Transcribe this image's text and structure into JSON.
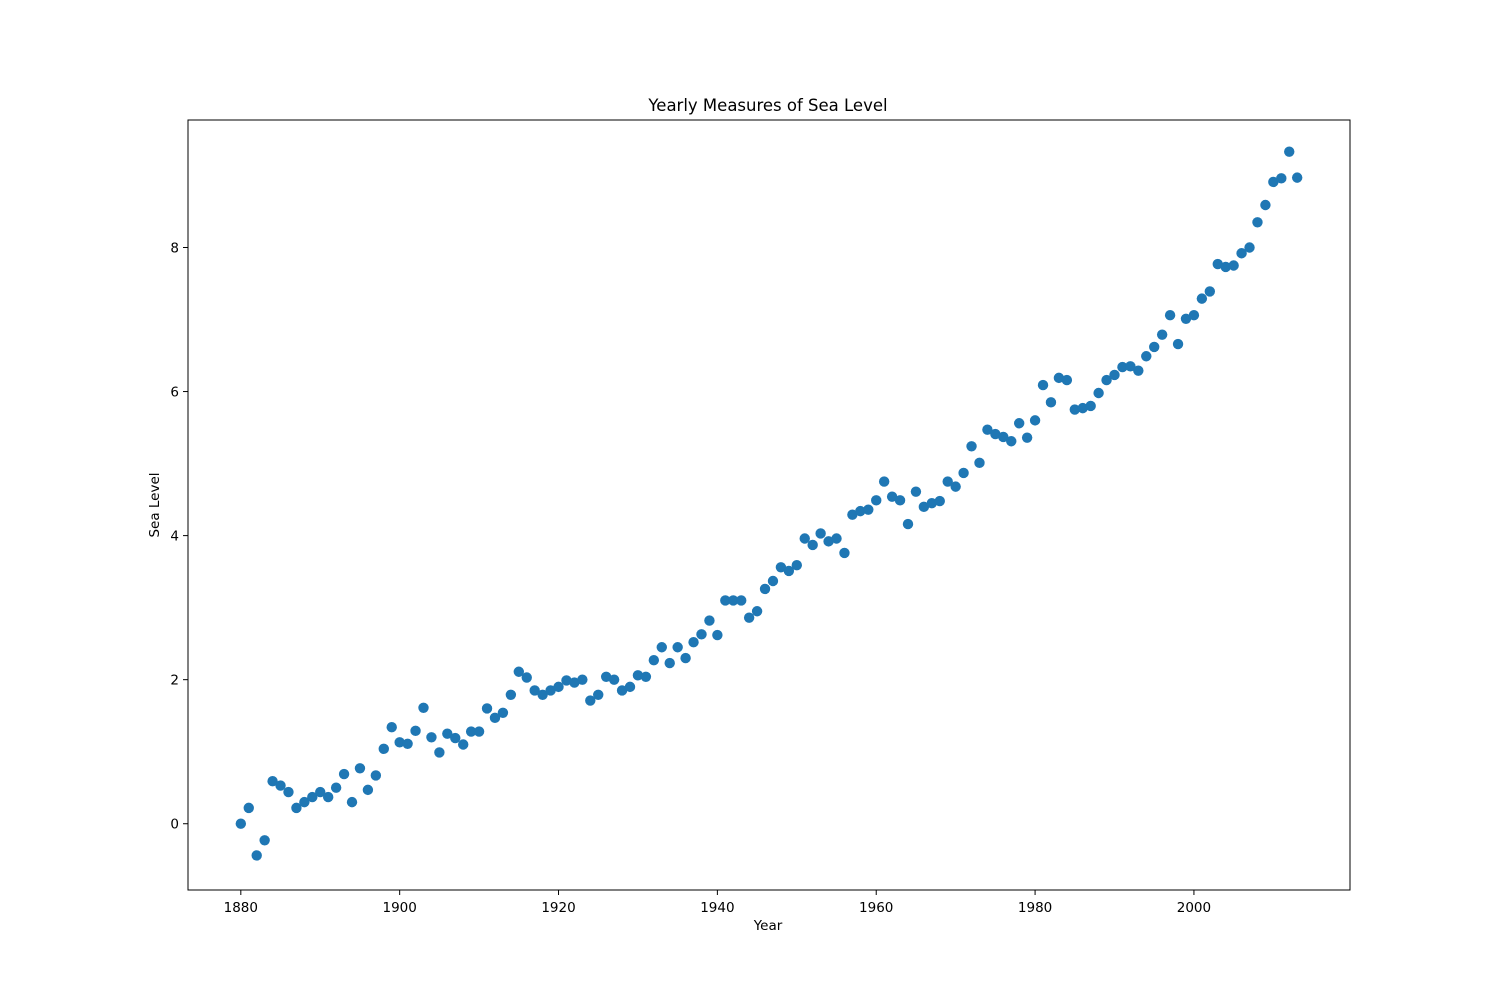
{
  "chart_data": {
    "type": "scatter",
    "title": "Yearly Measures of Sea Level",
    "xlabel": "Year",
    "ylabel": "Sea Level",
    "xlim": [
      1873.35,
      2019.65
    ],
    "ylim": [
      -0.92,
      9.77
    ],
    "xticks": [
      1880,
      1900,
      1920,
      1940,
      1960,
      1980,
      2000
    ],
    "yticks": [
      0,
      2,
      4,
      6,
      8
    ],
    "grid": false,
    "legend": "none",
    "marker_color": "#1f77b4",
    "x": [
      1880,
      1881,
      1882,
      1883,
      1884,
      1885,
      1886,
      1887,
      1888,
      1889,
      1890,
      1891,
      1892,
      1893,
      1894,
      1895,
      1896,
      1897,
      1898,
      1899,
      1900,
      1901,
      1902,
      1903,
      1904,
      1905,
      1906,
      1907,
      1908,
      1909,
      1910,
      1911,
      1912,
      1913,
      1914,
      1915,
      1916,
      1917,
      1918,
      1919,
      1920,
      1921,
      1922,
      1923,
      1924,
      1925,
      1926,
      1927,
      1928,
      1929,
      1930,
      1931,
      1932,
      1933,
      1934,
      1935,
      1936,
      1937,
      1938,
      1939,
      1940,
      1941,
      1942,
      1943,
      1944,
      1945,
      1946,
      1947,
      1948,
      1949,
      1950,
      1951,
      1952,
      1953,
      1954,
      1955,
      1956,
      1957,
      1958,
      1959,
      1960,
      1961,
      1962,
      1963,
      1964,
      1965,
      1966,
      1967,
      1968,
      1969,
      1970,
      1971,
      1972,
      1973,
      1974,
      1975,
      1976,
      1977,
      1978,
      1979,
      1980,
      1981,
      1982,
      1983,
      1984,
      1985,
      1986,
      1987,
      1988,
      1989,
      1990,
      1991,
      1992,
      1993,
      1994,
      1995,
      1996,
      1997,
      1998,
      1999,
      2000,
      2001,
      2002,
      2003,
      2004,
      2005,
      2006,
      2007,
      2008,
      2009,
      2010,
      2011,
      2012,
      2013
    ],
    "y": [
      0.0,
      0.22,
      -0.44,
      -0.23,
      0.59,
      0.53,
      0.44,
      0.22,
      0.3,
      0.37,
      0.44,
      0.37,
      0.5,
      0.69,
      0.3,
      0.77,
      0.47,
      0.67,
      1.04,
      1.34,
      1.13,
      1.11,
      1.29,
      1.61,
      1.2,
      0.99,
      1.25,
      1.19,
      1.1,
      1.28,
      1.28,
      1.6,
      1.47,
      1.54,
      1.79,
      2.11,
      2.03,
      1.85,
      1.79,
      1.85,
      1.9,
      1.99,
      1.96,
      2.0,
      1.71,
      1.79,
      2.04,
      2.0,
      1.85,
      1.9,
      2.06,
      2.04,
      2.27,
      2.45,
      2.23,
      2.45,
      2.3,
      2.52,
      2.63,
      2.82,
      2.62,
      3.1,
      3.1,
      3.1,
      2.86,
      2.95,
      3.26,
      3.37,
      3.56,
      3.51,
      3.59,
      3.96,
      3.87,
      4.03,
      3.92,
      3.96,
      3.76,
      4.29,
      4.34,
      4.36,
      4.49,
      4.75,
      4.54,
      4.49,
      4.16,
      4.61,
      4.4,
      4.45,
      4.48,
      4.75,
      4.68,
      4.87,
      5.24,
      5.01,
      5.47,
      5.41,
      5.37,
      5.31,
      5.56,
      5.36,
      5.6,
      6.09,
      5.85,
      6.19,
      6.16,
      5.75,
      5.77,
      5.8,
      5.98,
      6.16,
      6.23,
      6.34,
      6.35,
      6.29,
      6.49,
      6.62,
      6.79,
      7.06,
      6.66,
      7.01,
      7.06,
      7.29,
      7.39,
      7.77,
      7.73,
      7.75,
      7.92,
      8.0,
      8.35,
      8.59,
      8.91,
      8.96,
      9.33,
      8.97
    ]
  }
}
